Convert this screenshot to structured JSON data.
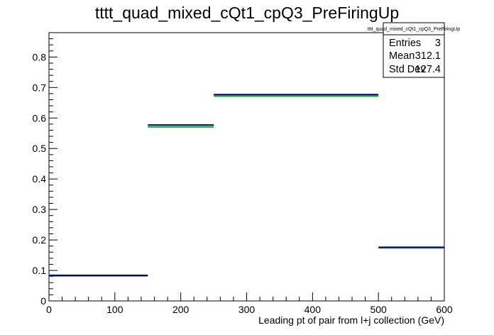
{
  "chart_data": {
    "type": "histogram",
    "title": "tttt_quad_mixed_cQt1_cpQ3_PreFiringUp",
    "xlabel": "Leading pt of pair from l+j collection (GeV)",
    "ylabel": "",
    "xlim": [
      0,
      600
    ],
    "ylim": [
      0,
      0.88
    ],
    "x_ticks": [
      "0",
      "100",
      "200",
      "300",
      "400",
      "500",
      "600"
    ],
    "y_ticks": [
      "0",
      "0.1",
      "0.2",
      "0.3",
      "0.4",
      "0.5",
      "0.6",
      "0.7",
      "0.8"
    ],
    "grid": false,
    "series": [
      {
        "color": "#000080",
        "bins": [
          {
            "x0": 0,
            "x1": 150,
            "y": 0.084
          },
          {
            "x0": 150,
            "x1": 250,
            "y": 0.577
          },
          {
            "x0": 250,
            "x1": 500,
            "y": 0.677
          },
          {
            "x0": 500,
            "x1": 600,
            "y": 0.176
          }
        ]
      },
      {
        "color": "#00b000",
        "bins": [
          {
            "x0": 0,
            "x1": 150,
            "y": 0.082
          },
          {
            "x0": 150,
            "x1": 250,
            "y": 0.571
          },
          {
            "x0": 250,
            "x1": 500,
            "y": 0.672
          },
          {
            "x0": 500,
            "x1": 600,
            "y": 0.174
          }
        ]
      }
    ],
    "stats_box": {
      "title": "tttt_quad_mixed_cQt1_cpQ3_PreFiringUp",
      "rows": [
        {
          "label": "Entries",
          "value": "3"
        },
        {
          "label": "Mean",
          "value": "312.1"
        },
        {
          "label": "Std Dev",
          "value": "127.4"
        }
      ]
    }
  }
}
